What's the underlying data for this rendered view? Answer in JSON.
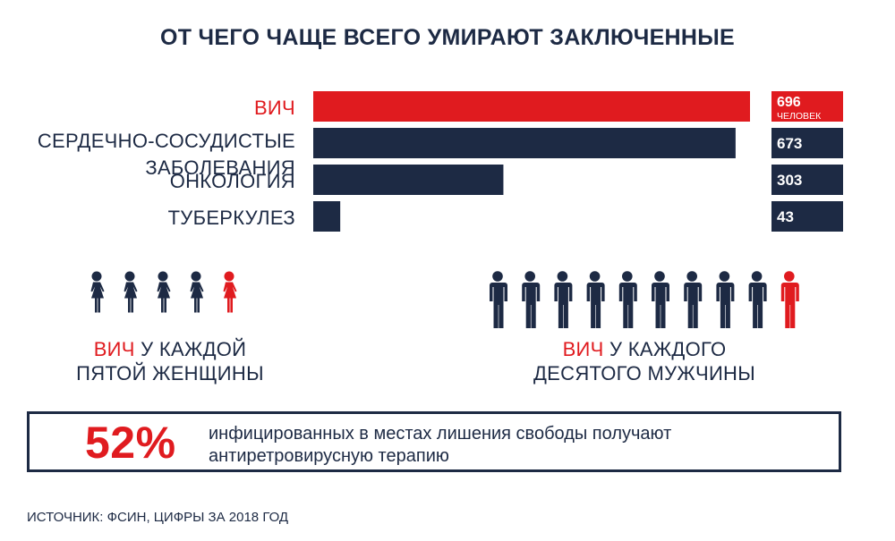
{
  "chart_data": {
    "type": "bar",
    "orientation": "horizontal",
    "title": "ОТ ЧЕГО ЧАЩЕ ВСЕГО УМИРАЮТ ЗАКЛЮЧЕННЫЕ",
    "categories": [
      [
        "ВИЧ"
      ],
      [
        "СЕРДЕЧНО-СОСУДИСТЫЕ",
        "ЗАБОЛЕВАНИЯ"
      ],
      [
        "ОНКОЛОГИЯ"
      ],
      [
        "ТУБЕРКУЛЕЗ"
      ]
    ],
    "values": [
      696,
      673,
      303,
      43
    ],
    "value_unit_label": "ЧЕЛОВЕК",
    "highlight_index": 0,
    "xlim": [
      0,
      696
    ],
    "colors": {
      "highlight": "#e01b1f",
      "default": "#1d2a44"
    }
  },
  "women": {
    "total": 5,
    "highlighted": 1,
    "caption_highlight": "ВИЧ",
    "caption_rest_line1": " У КАЖДОЙ",
    "caption_line2": "ПЯТОЙ ЖЕНЩИНЫ"
  },
  "men": {
    "total": 10,
    "highlighted": 1,
    "caption_highlight": "ВИЧ",
    "caption_rest_line1": " У КАЖДОГО",
    "caption_line2": "ДЕСЯТОГО МУЖЧИНЫ"
  },
  "callout": {
    "percent": "52%",
    "text_line1": "инфицированных в местах лишения свободы получают",
    "text_line2": "антиретровирусную терапию"
  },
  "source": "ИСТОЧНИК: ФСИН, ЦИФРЫ ЗА 2018 ГОД",
  "colors": {
    "red": "#e01b1f",
    "navy": "#1d2a44"
  }
}
